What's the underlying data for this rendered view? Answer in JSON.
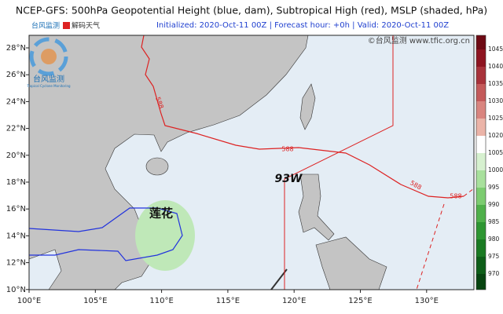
{
  "header": {
    "title": "NCEP-GFS: 500hPa Geopotential Height (blue, dam), Subtropical High (red), MSLP (shaded, hPa)",
    "subtitle": "Initialized: 2020-Oct-11 00Z  |  Forecast hour: +0h  |  Valid: 2020-Oct-11 00Z"
  },
  "logo": {
    "top_left": "台风监测",
    "badge": "解码天气",
    "name": "台风监测",
    "tagline": "Tropical Cyclone Monitoring"
  },
  "watermark": "©台风监测 www.tfic.org.cn",
  "map": {
    "lat_labels": [
      "28°N",
      "26°N",
      "24°N",
      "22°N",
      "20°N",
      "18°N",
      "16°N",
      "14°N",
      "12°N",
      "10°N"
    ],
    "lon_labels": [
      "100°E",
      "105°E",
      "110°E",
      "115°E",
      "120°E",
      "125°E",
      "130°E"
    ],
    "contour_labels": [
      "588",
      "588",
      "588",
      "588"
    ],
    "storm_labels": [
      "93W",
      "莲花"
    ]
  },
  "colorbar": {
    "levels": [
      1045,
      1040,
      1035,
      1030,
      1025,
      1020,
      1005,
      1000,
      995,
      990,
      985,
      980,
      975,
      970
    ],
    "colors": [
      "#6e0a14",
      "#8e1420",
      "#a8323a",
      "#c45a5a",
      "#d9857f",
      "#ebb4a8",
      "#ffffff",
      "#d6f0cf",
      "#a8e09c",
      "#7ccc70",
      "#4fb04a",
      "#2e9632",
      "#1a7a22",
      "#0e5e18",
      "#074410"
    ]
  }
}
